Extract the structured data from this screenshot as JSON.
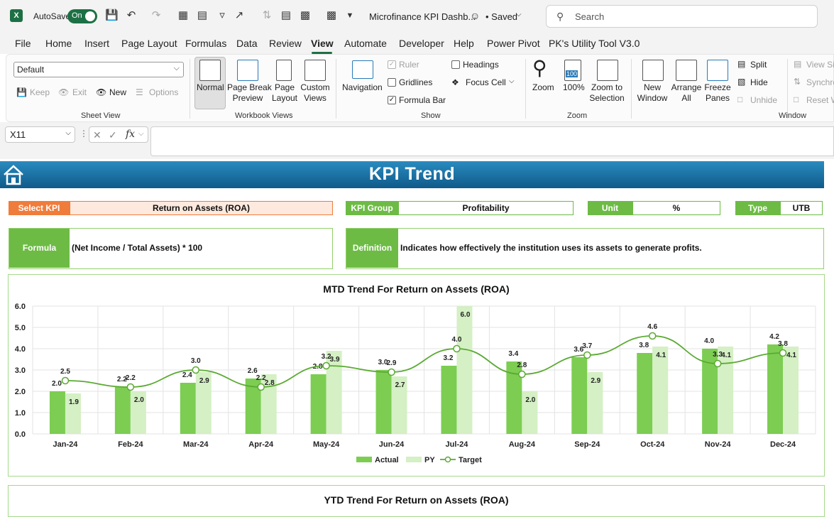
{
  "titlebar": {
    "autosave_label": "AutoSave",
    "autosave_state": "On",
    "file_name": "Microfinance KPI Dashb...",
    "save_status": "• Saved",
    "search_placeholder": "Search"
  },
  "menu": {
    "items": [
      "File",
      "Home",
      "Insert",
      "Page Layout",
      "Formulas",
      "Data",
      "Review",
      "View",
      "Automate",
      "Developer",
      "Help",
      "Power Pivot",
      "PK's Utility Tool V3.0"
    ],
    "active": "View"
  },
  "ribbon": {
    "sheet_view": {
      "dropdown_value": "Default",
      "keep": "Keep",
      "exit": "Exit",
      "new": "New",
      "options": "Options",
      "group_label": "Sheet View"
    },
    "workbook_views": {
      "normal": "Normal",
      "page_break_1": "Page Break",
      "page_break_2": "Preview",
      "page_layout_1": "Page",
      "page_layout_2": "Layout",
      "custom_1": "Custom",
      "custom_2": "Views",
      "group_label": "Workbook Views"
    },
    "show": {
      "navigation": "Navigation",
      "ruler": "Ruler",
      "gridlines": "Gridlines",
      "formula_bar": "Formula Bar",
      "headings": "Headings",
      "focus_cell": "Focus Cell",
      "group_label": "Show"
    },
    "zoom": {
      "zoom": "Zoom",
      "hundred": "100%",
      "zoom_sel_1": "Zoom to",
      "zoom_sel_2": "Selection",
      "hundred_icon_text": "100",
      "group_label": "Zoom"
    },
    "window": {
      "new_1": "New",
      "new_2": "Window",
      "arrange_1": "Arrange",
      "arrange_2": "All",
      "freeze_1": "Freeze",
      "freeze_2": "Panes",
      "split": "Split",
      "hide": "Hide",
      "unhide": "Unhide",
      "view_side": "View Si",
      "synchro": "Synchro",
      "reset": "Reset W",
      "group_label": "Window"
    }
  },
  "formula_bar": {
    "cell_ref": "X11",
    "fx": "fx",
    "content": ""
  },
  "dashboard": {
    "title": "KPI Trend",
    "select_kpi_label": "Select KPI",
    "select_kpi_value": "Return on Assets (ROA)",
    "kpi_group_label": "KPI Group",
    "kpi_group_value": "Profitability",
    "unit_label": "Unit",
    "unit_value": "%",
    "type_label": "Type",
    "type_value": "UTB",
    "formula_label": "Formula",
    "formula_value": "(Net Income / Total Assets) * 100",
    "definition_label": "Definition",
    "definition_value": "Indicates how effectively the institution uses its assets to generate profits.",
    "ytd_title": "YTD Trend For Return on Assets (ROA)"
  },
  "colors": {
    "actual": "#7ccd52",
    "py": "#d4f0c4",
    "target": "#5aaa32",
    "accent_orange": "#f07c3b",
    "accent_green": "#6dbb45",
    "banner": "#1a6fa0"
  },
  "chart_data": {
    "type": "bar",
    "title": "MTD Trend For Return on Assets (ROA)",
    "categories": [
      "Jan-24",
      "Feb-24",
      "Mar-24",
      "Apr-24",
      "May-24",
      "Jun-24",
      "Jul-24",
      "Aug-24",
      "Sep-24",
      "Oct-24",
      "Nov-24",
      "Dec-24"
    ],
    "series": [
      {
        "name": "Actual",
        "type": "bar",
        "values": [
          2.0,
          2.2,
          2.4,
          2.6,
          2.8,
          3.0,
          3.2,
          3.4,
          3.6,
          3.8,
          4.0,
          4.2
        ]
      },
      {
        "name": "PY",
        "type": "bar",
        "values": [
          1.9,
          2.0,
          2.9,
          2.8,
          3.9,
          2.7,
          6.0,
          2.0,
          2.9,
          4.1,
          4.1,
          4.1
        ]
      },
      {
        "name": "Target",
        "type": "line",
        "values": [
          2.5,
          2.2,
          3.0,
          2.2,
          3.2,
          2.9,
          4.0,
          2.8,
          3.7,
          4.6,
          3.3,
          3.8
        ]
      }
    ],
    "ylim": [
      0,
      6
    ],
    "yticks": [
      "0.0",
      "1.0",
      "2.0",
      "3.0",
      "4.0",
      "5.0",
      "6.0"
    ],
    "grid": true,
    "legend": "bottom"
  }
}
